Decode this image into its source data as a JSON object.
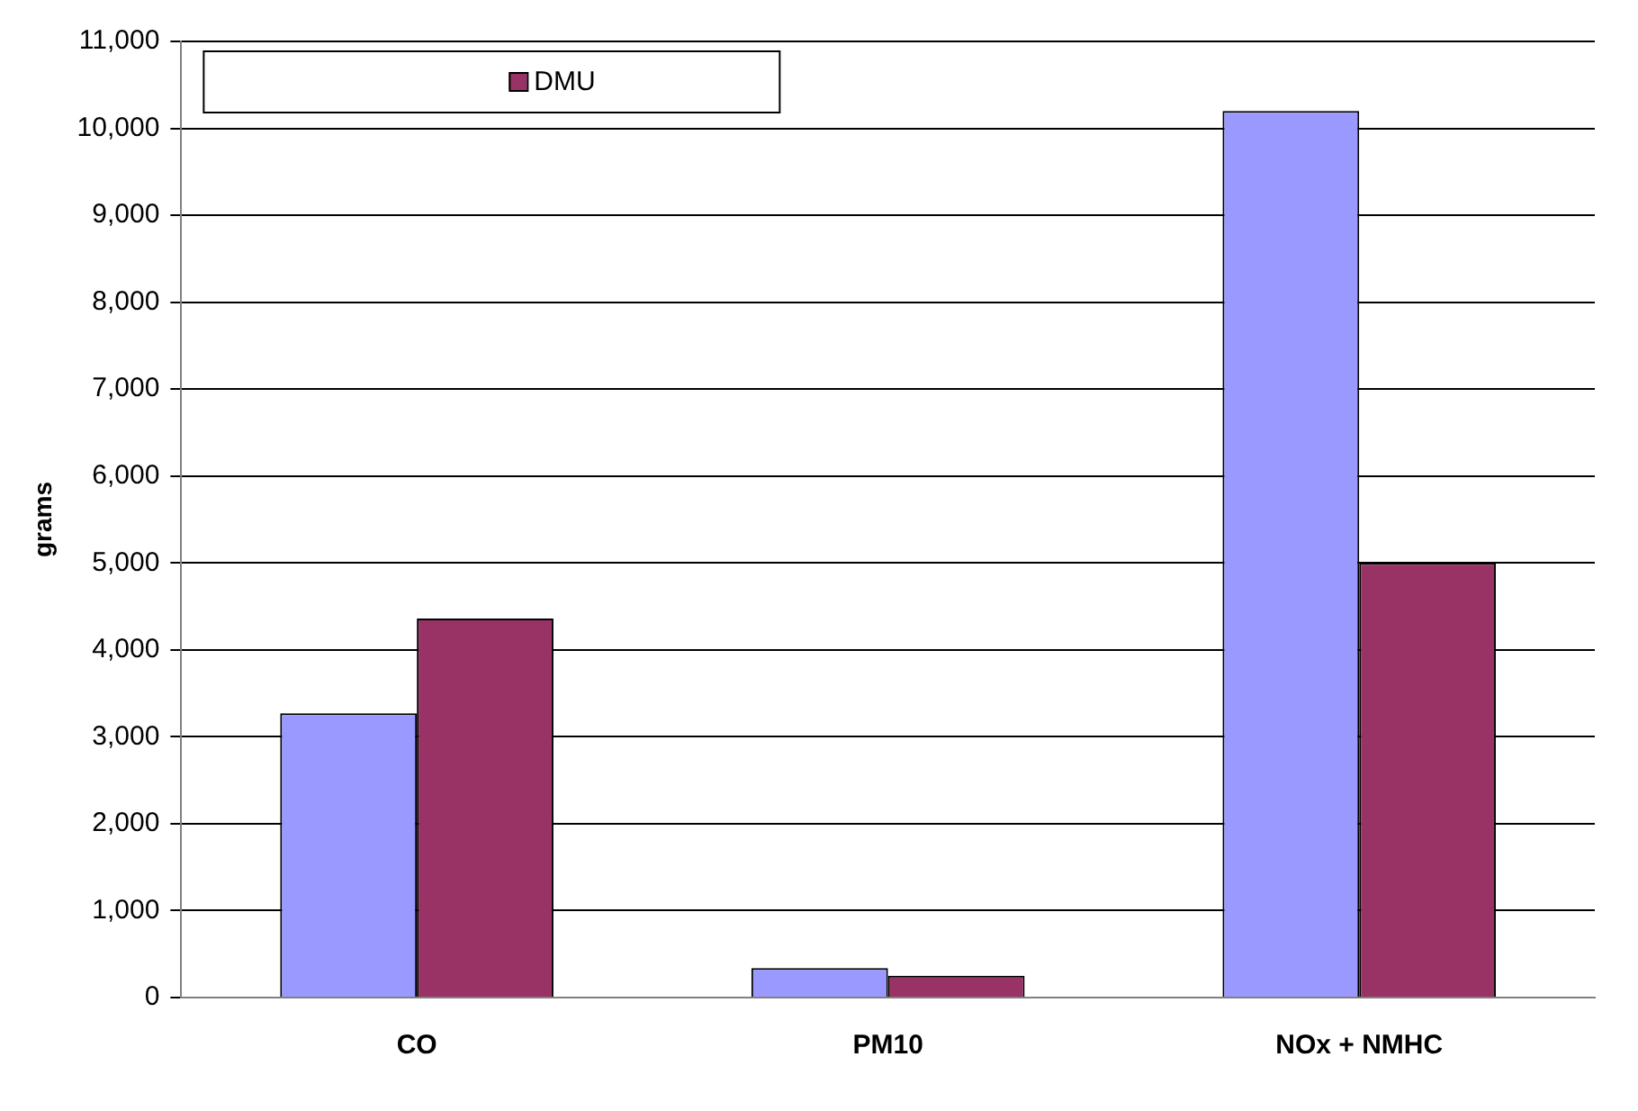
{
  "chart_data": {
    "type": "bar",
    "ylabel": "grams",
    "categories": [
      "CO",
      "PM10",
      "NOx + NMHC"
    ],
    "series": [
      {
        "color": "#9999ff",
        "values": [
          3270,
          340,
          10200
        ]
      },
      {
        "name": "DMU",
        "color": "#993366",
        "values": [
          4360,
          250,
          5000
        ]
      }
    ],
    "ylim": [
      0,
      11000
    ],
    "yticks": [
      {
        "value": 0,
        "label": "0"
      },
      {
        "value": 1000,
        "label": "1,000"
      },
      {
        "value": 2000,
        "label": "2,000"
      },
      {
        "value": 3000,
        "label": "3,000"
      },
      {
        "value": 4000,
        "label": "4,000"
      },
      {
        "value": 5000,
        "label": "5,000"
      },
      {
        "value": 6000,
        "label": "6,000"
      },
      {
        "value": 7000,
        "label": "7,000"
      },
      {
        "value": 8000,
        "label": "8,000"
      },
      {
        "value": 9000,
        "label": "9,000"
      },
      {
        "value": 10000,
        "label": "10,000"
      },
      {
        "value": 11000,
        "label": "11,000"
      }
    ],
    "grid": "y",
    "legend": "top left"
  }
}
